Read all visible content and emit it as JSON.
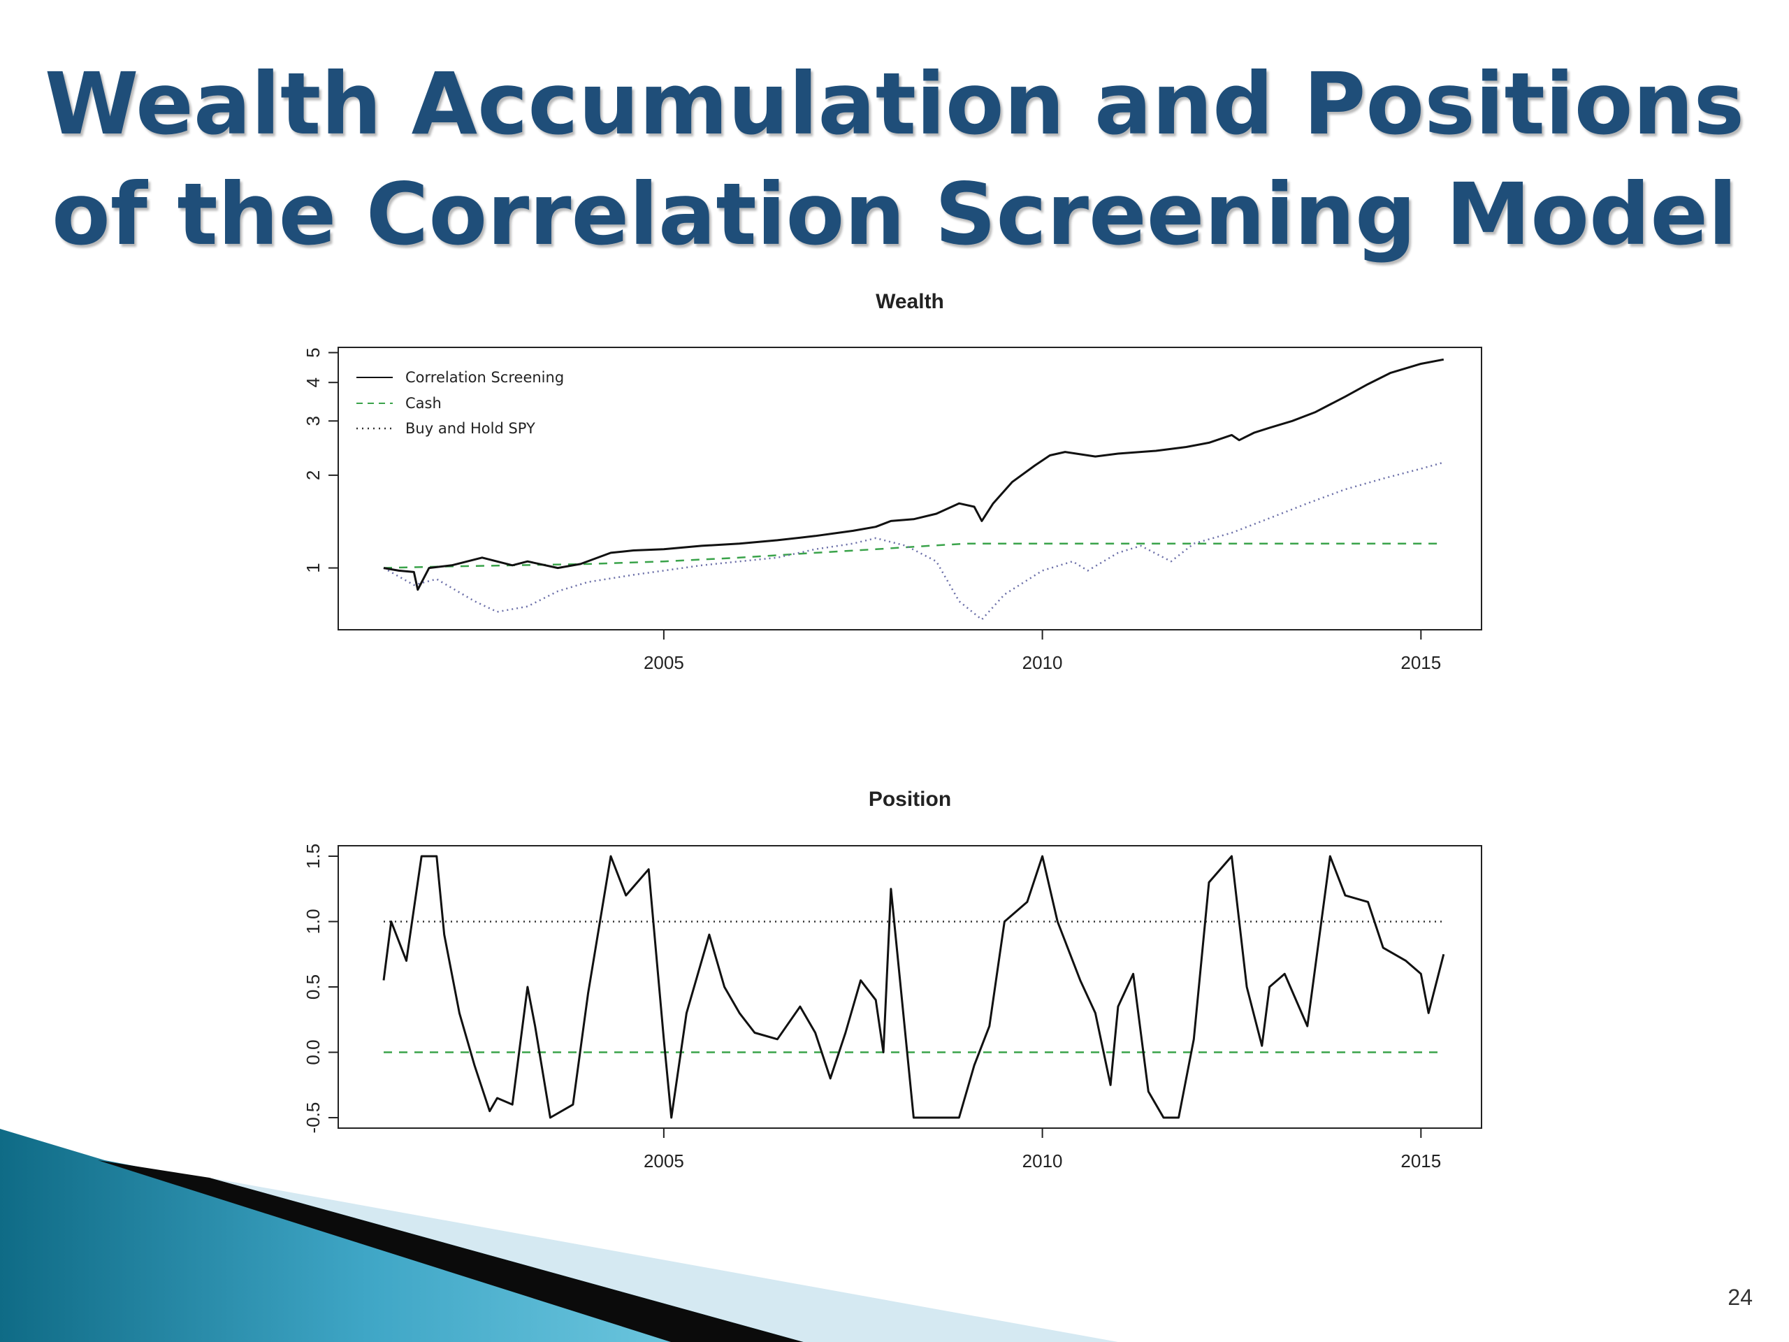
{
  "slide": {
    "title_line1": "Wealth Accumulation and Positions",
    "title_line2": "of the Correlation Screening Model",
    "page_number": "24"
  },
  "colors": {
    "title": "#1f4e79",
    "strategy": "#111111",
    "cash": "#3aa34a",
    "spy": "#6b6fa8",
    "reference": "#333333"
  },
  "chart_data": [
    {
      "id": "wealth",
      "type": "line",
      "title": "Wealth",
      "xlabel": "",
      "ylabel": "",
      "yscale": "log",
      "xlim": [
        2000.7,
        2015.8
      ],
      "ylim": [
        0.63,
        5.2
      ],
      "x_ticks": [
        2005,
        2010,
        2015
      ],
      "x_tick_labels": [
        "2005",
        "2010",
        "2015"
      ],
      "y_ticks": [
        1,
        2,
        3,
        4,
        5
      ],
      "y_tick_labels": [
        "1",
        "2",
        "3",
        "4",
        "5"
      ],
      "legend": {
        "position": "top-left",
        "entries": [
          {
            "label": "Correlation Screening",
            "style": "solid"
          },
          {
            "label": "Cash",
            "style": "dashed"
          },
          {
            "label": "Buy and Hold SPY",
            "style": "dotted"
          }
        ]
      },
      "series": [
        {
          "name": "Correlation Screening",
          "style": "solid",
          "x": [
            2001.3,
            2001.5,
            2001.7,
            2001.75,
            2001.9,
            2002.2,
            2002.6,
            2003.0,
            2003.2,
            2003.6,
            2003.9,
            2004.3,
            2004.6,
            2005.0,
            2005.5,
            2006.0,
            2006.5,
            2007.0,
            2007.5,
            2007.8,
            2008.0,
            2008.3,
            2008.6,
            2008.9,
            2009.1,
            2009.2,
            2009.35,
            2009.6,
            2009.9,
            2010.1,
            2010.3,
            2010.7,
            2011.0,
            2011.5,
            2011.9,
            2012.2,
            2012.5,
            2012.6,
            2012.8,
            2013.0,
            2013.3,
            2013.6,
            2014.0,
            2014.3,
            2014.6,
            2015.0,
            2015.3
          ],
          "y": [
            1.0,
            0.98,
            0.97,
            0.85,
            1.0,
            1.02,
            1.08,
            1.02,
            1.05,
            1.0,
            1.03,
            1.12,
            1.14,
            1.15,
            1.18,
            1.2,
            1.23,
            1.27,
            1.32,
            1.36,
            1.42,
            1.44,
            1.5,
            1.62,
            1.58,
            1.42,
            1.62,
            1.9,
            2.15,
            2.32,
            2.38,
            2.3,
            2.35,
            2.4,
            2.47,
            2.55,
            2.7,
            2.6,
            2.75,
            2.85,
            3.0,
            3.2,
            3.6,
            3.95,
            4.3,
            4.6,
            4.75
          ]
        },
        {
          "name": "Cash",
          "style": "dashed",
          "x": [
            2001.3,
            2002.0,
            2003.0,
            2004.0,
            2005.0,
            2006.0,
            2007.0,
            2007.8,
            2008.5,
            2009.0,
            2010.0,
            2012.0,
            2015.3
          ],
          "y": [
            1.0,
            1.01,
            1.02,
            1.03,
            1.05,
            1.08,
            1.12,
            1.15,
            1.18,
            1.2,
            1.2,
            1.2,
            1.2
          ]
        },
        {
          "name": "Buy and Hold SPY",
          "style": "dotted",
          "x": [
            2001.3,
            2001.7,
            2002.0,
            2002.5,
            2002.8,
            2003.2,
            2003.6,
            2004.0,
            2004.6,
            2005.0,
            2005.5,
            2006.0,
            2006.5,
            2007.0,
            2007.5,
            2007.8,
            2008.2,
            2008.6,
            2008.9,
            2009.2,
            2009.5,
            2010.0,
            2010.4,
            2010.6,
            2011.0,
            2011.3,
            2011.7,
            2012.0,
            2012.5,
            2013.0,
            2013.5,
            2014.0,
            2014.5,
            2015.0,
            2015.3
          ],
          "y": [
            1.0,
            0.88,
            0.92,
            0.78,
            0.72,
            0.75,
            0.84,
            0.9,
            0.95,
            0.98,
            1.02,
            1.05,
            1.08,
            1.15,
            1.2,
            1.25,
            1.18,
            1.05,
            0.78,
            0.68,
            0.82,
            0.98,
            1.05,
            0.98,
            1.12,
            1.18,
            1.05,
            1.2,
            1.3,
            1.45,
            1.62,
            1.8,
            1.95,
            2.1,
            2.2
          ]
        }
      ]
    },
    {
      "id": "position",
      "type": "line",
      "title": "Position",
      "xlabel": "",
      "ylabel": "",
      "xlim": [
        2000.7,
        2015.8
      ],
      "ylim": [
        -0.58,
        1.58
      ],
      "x_ticks": [
        2005,
        2010,
        2015
      ],
      "x_tick_labels": [
        "2005",
        "2010",
        "2015"
      ],
      "y_ticks": [
        -0.5,
        0.0,
        0.5,
        1.0,
        1.5
      ],
      "y_tick_labels": [
        "-0.5",
        "0.0",
        "0.5",
        "1.0",
        "1.5"
      ],
      "reference_lines": [
        {
          "y": 1.0,
          "style": "dotted"
        },
        {
          "y": 0.0,
          "style": "dashed"
        }
      ],
      "series": [
        {
          "name": "Position",
          "style": "solid",
          "x": [
            2001.3,
            2001.4,
            2001.6,
            2001.8,
            2002.0,
            2002.1,
            2002.3,
            2002.5,
            2002.7,
            2002.8,
            2003.0,
            2003.2,
            2003.3,
            2003.5,
            2003.8,
            2004.0,
            2004.3,
            2004.5,
            2004.8,
            2005.0,
            2005.1,
            2005.3,
            2005.6,
            2005.8,
            2006.0,
            2006.2,
            2006.5,
            2006.8,
            2007.0,
            2007.2,
            2007.4,
            2007.6,
            2007.8,
            2007.9,
            2008.0,
            2008.3,
            2008.5,
            2008.7,
            2008.9,
            2009.1,
            2009.3,
            2009.5,
            2009.8,
            2010.0,
            2010.2,
            2010.5,
            2010.7,
            2010.9,
            2011.0,
            2011.2,
            2011.4,
            2011.6,
            2011.8,
            2012.0,
            2012.2,
            2012.5,
            2012.7,
            2012.9,
            2013.0,
            2013.2,
            2013.5,
            2013.8,
            2014.0,
            2014.3,
            2014.5,
            2014.8,
            2015.0,
            2015.1,
            2015.3
          ],
          "y": [
            0.55,
            1.0,
            0.7,
            1.5,
            1.5,
            0.9,
            0.3,
            -0.1,
            -0.45,
            -0.35,
            -0.4,
            0.5,
            0.2,
            -0.5,
            -0.4,
            0.45,
            1.5,
            1.2,
            1.4,
            0.1,
            -0.5,
            0.3,
            0.9,
            0.5,
            0.3,
            0.15,
            0.1,
            0.35,
            0.15,
            -0.2,
            0.15,
            0.55,
            0.4,
            0.0,
            1.25,
            -0.5,
            -0.5,
            -0.5,
            -0.5,
            -0.1,
            0.2,
            1.0,
            1.15,
            1.5,
            1.0,
            0.55,
            0.3,
            -0.25,
            0.35,
            0.6,
            -0.3,
            -0.5,
            -0.5,
            0.1,
            1.3,
            1.5,
            0.5,
            0.05,
            0.5,
            0.6,
            0.2,
            1.5,
            1.2,
            1.15,
            0.8,
            0.7,
            0.6,
            0.3,
            0.75
          ]
        }
      ]
    }
  ]
}
